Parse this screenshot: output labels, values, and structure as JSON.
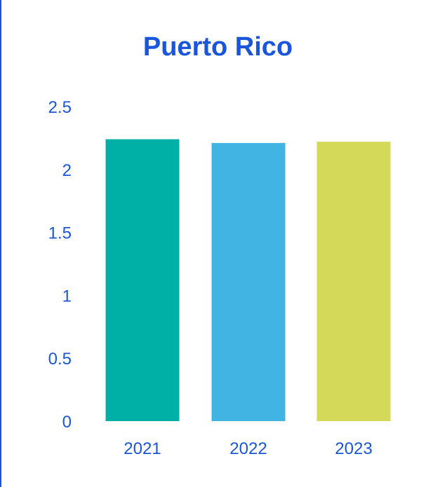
{
  "colors": {
    "text": "#1a56db",
    "border": "#1a56db",
    "bars": [
      "#00b0a6",
      "#42b4e4",
      "#d4d95a"
    ]
  },
  "chart_data": {
    "type": "bar",
    "title": "Puerto Rico",
    "xlabel": "",
    "ylabel": "",
    "categories": [
      "2021",
      "2022",
      "2023"
    ],
    "values": [
      2.24,
      2.21,
      2.22
    ],
    "ylim": [
      0,
      2.5
    ],
    "yticks": [
      "0",
      "0.5",
      "1",
      "1.5",
      "2",
      "2.5"
    ],
    "grid": false,
    "legend": "none"
  }
}
